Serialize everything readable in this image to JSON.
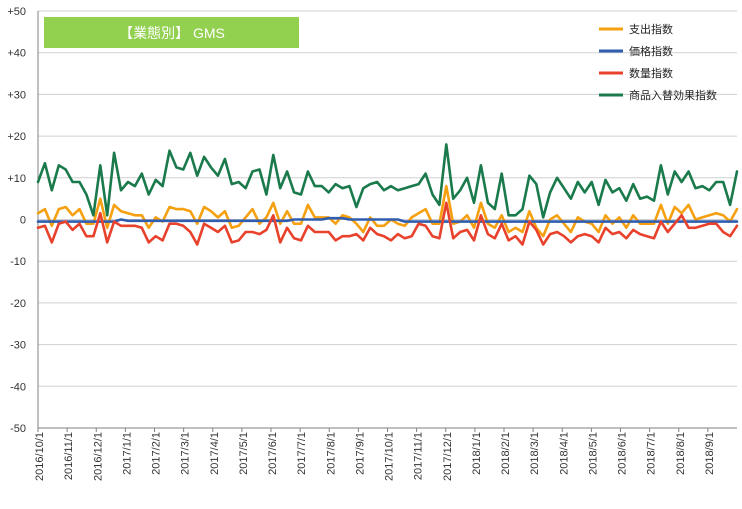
{
  "colors": {
    "title_box": "#92D050",
    "title_text": "#ffffff",
    "grid": "#d0d0d0",
    "axis": "#808080"
  },
  "chart_data": {
    "type": "line",
    "title": "【業態別】 GMS",
    "ylim": [
      -50,
      50
    ],
    "y_ticks": [
      "+50",
      "+40",
      "+30",
      "+20",
      "+10",
      "0",
      "-10",
      "-20",
      "-30",
      "-40",
      "-50"
    ],
    "x_tick_labels": [
      "2016/10/1",
      "2016/11/1",
      "2016/12/1",
      "2017/1/1",
      "2017/2/1",
      "2017/3/1",
      "2017/4/1",
      "2017/5/1",
      "2017/6/1",
      "2017/7/1",
      "2017/8/1",
      "2017/9/1",
      "2017/10/1",
      "2017/11/1",
      "2017/12/1",
      "2018/1/1",
      "2018/2/1",
      "2018/3/1",
      "2018/4/1",
      "2018/5/1",
      "2018/6/1",
      "2018/7/1",
      "2018/8/1",
      "2018/9/1"
    ],
    "legend_position": "top-right",
    "grid": true,
    "series": [
      {
        "name": "支出指数",
        "color": "#F5A010",
        "values": [
          1.5,
          2.5,
          -1.5,
          2.5,
          3.0,
          1.0,
          2.5,
          -1.0,
          -1.0,
          5.0,
          -2.0,
          3.5,
          2.0,
          1.5,
          1.0,
          1.0,
          -2.0,
          0.5,
          -0.5,
          3.0,
          2.5,
          2.5,
          2.0,
          -1.0,
          3.0,
          2.0,
          0.5,
          2.0,
          -2.0,
          -1.5,
          0.5,
          2.5,
          -1.0,
          0.5,
          4.0,
          -1.0,
          2.0,
          -1.0,
          -1.0,
          3.5,
          0.5,
          0.5,
          0.5,
          -1.0,
          1.0,
          0.5,
          -1.0,
          -3.0,
          0.5,
          -1.5,
          -1.5,
          0.0,
          -1.0,
          -1.5,
          0.5,
          1.5,
          2.5,
          -1.0,
          -1.0,
          8.0,
          -1.0,
          -0.5,
          1.0,
          -2.0,
          4.0,
          -1.0,
          -2.0,
          1.0,
          -3.0,
          -2.0,
          -3.0,
          2.0,
          -2.0,
          -4.0,
          0.0,
          1.0,
          -1.0,
          -3.0,
          0.5,
          -0.5,
          -1.0,
          -3.0,
          1.0,
          -1.0,
          0.5,
          -2.0,
          1.0,
          -1.0,
          -1.0,
          -1.0,
          3.5,
          -1.0,
          3.0,
          1.5,
          3.5,
          0.0,
          0.5,
          1.0,
          1.5,
          1.0,
          -0.5,
          2.5
        ]
      },
      {
        "name": "価格指数",
        "color": "#2F5DB0",
        "values": [
          -0.5,
          -0.5,
          -0.5,
          -0.5,
          -0.5,
          -0.5,
          -0.5,
          -0.5,
          -0.5,
          -0.5,
          -0.5,
          -0.5,
          0.0,
          -0.3,
          -0.3,
          -0.3,
          -0.3,
          -0.3,
          -0.3,
          -0.3,
          -0.3,
          -0.3,
          -0.3,
          -0.3,
          -0.3,
          -0.3,
          -0.3,
          -0.3,
          -0.3,
          -0.3,
          -0.3,
          -0.3,
          -0.3,
          -0.3,
          -0.3,
          -0.3,
          -0.3,
          0.0,
          0.0,
          0.0,
          0.0,
          0.0,
          0.3,
          0.3,
          0.3,
          0.0,
          0.0,
          0.0,
          0.0,
          0.0,
          0.0,
          0.0,
          0.0,
          -0.5,
          -0.5,
          -0.5,
          -0.5,
          -0.5,
          -0.5,
          -0.5,
          -0.5,
          -0.5,
          -0.5,
          -0.5,
          -0.5,
          -0.5,
          -0.5,
          -0.5,
          -0.5,
          -0.5,
          -0.5,
          -0.5,
          -0.5,
          -0.5,
          -0.5,
          -0.5,
          -0.5,
          -0.5,
          -0.5,
          -0.5,
          -0.5,
          -0.5,
          -0.5,
          -0.5,
          -0.5,
          -0.5,
          -0.5,
          -0.5,
          -0.5,
          -0.5,
          -0.5,
          -0.5,
          -0.5,
          -0.5,
          -0.5,
          -0.5,
          -0.5,
          -0.5,
          -0.5,
          -0.5,
          -0.5,
          -0.5
        ]
      },
      {
        "name": "数量指数",
        "color": "#E8412C",
        "values": [
          -2.0,
          -1.5,
          -5.5,
          -1.0,
          -0.5,
          -2.5,
          -1.0,
          -4.0,
          -4.0,
          1.5,
          -5.5,
          -0.5,
          -1.5,
          -1.5,
          -1.5,
          -2.0,
          -5.5,
          -4.0,
          -5.0,
          -1.0,
          -1.0,
          -1.5,
          -3.0,
          -6.0,
          -1.0,
          -2.0,
          -3.0,
          -1.5,
          -5.5,
          -5.0,
          -3.0,
          -3.0,
          -3.5,
          -2.5,
          1.0,
          -5.5,
          -2.0,
          -4.5,
          -5.0,
          -1.5,
          -3.0,
          -3.0,
          -3.0,
          -5.0,
          -4.0,
          -4.0,
          -3.5,
          -5.0,
          -2.0,
          -3.5,
          -4.0,
          -5.0,
          -3.5,
          -4.5,
          -4.0,
          -1.0,
          -1.5,
          -4.0,
          -4.5,
          4.0,
          -4.5,
          -3.0,
          -2.5,
          -5.0,
          1.0,
          -3.5,
          -4.5,
          -1.0,
          -5.0,
          -4.0,
          -6.0,
          -0.5,
          -2.5,
          -6.0,
          -3.5,
          -3.0,
          -4.0,
          -5.5,
          -4.0,
          -3.5,
          -4.0,
          -5.5,
          -2.0,
          -3.5,
          -3.0,
          -4.5,
          -2.5,
          -3.5,
          -4.0,
          -4.5,
          -0.5,
          -3.0,
          -1.0,
          1.0,
          -2.0,
          -2.0,
          -1.5,
          -1.0,
          -1.0,
          -3.0,
          -4.0,
          -1.5
        ]
      },
      {
        "name": "商品入替効果指数",
        "color": "#1A7A4C",
        "values": [
          9.0,
          13.5,
          7.0,
          13.0,
          12.0,
          9.0,
          9.0,
          6.0,
          1.0,
          13.0,
          1.0,
          16.0,
          7.0,
          9.0,
          8.0,
          11.0,
          6.0,
          9.5,
          8.0,
          16.5,
          12.5,
          12.0,
          16.0,
          10.5,
          15.0,
          12.5,
          10.5,
          14.5,
          8.5,
          9.0,
          7.5,
          11.5,
          12.0,
          6.0,
          15.5,
          7.5,
          11.5,
          6.5,
          6.0,
          11.5,
          8.0,
          8.0,
          6.5,
          8.5,
          7.5,
          8.0,
          3.0,
          7.5,
          8.5,
          9.0,
          7.0,
          8.0,
          7.0,
          7.5,
          8.0,
          8.5,
          11.0,
          6.0,
          3.5,
          18.0,
          5.0,
          7.0,
          10.0,
          4.0,
          13.0,
          4.0,
          2.5,
          11.0,
          1.0,
          1.0,
          2.5,
          10.5,
          8.5,
          0.5,
          6.5,
          10.0,
          7.5,
          5.0,
          9.0,
          6.5,
          9.0,
          3.5,
          9.5,
          6.5,
          7.5,
          4.5,
          8.5,
          5.0,
          5.5,
          4.5,
          13.0,
          6.0,
          11.5,
          9.0,
          11.5,
          7.5,
          8.0,
          7.0,
          9.0,
          9.0,
          3.5,
          11.5
        ]
      }
    ]
  }
}
